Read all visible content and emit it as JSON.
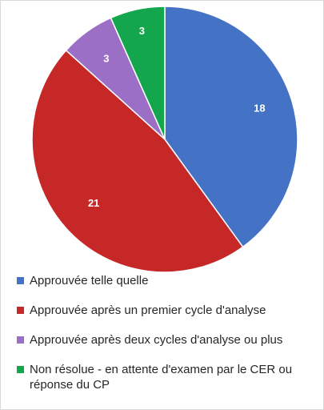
{
  "chart_data": {
    "type": "pie",
    "title": "",
    "categories": [
      "Approuvée telle quelle",
      "Approuvée après un premier cycle d'analyse",
      "Approuvée après deux cycles d'analyse ou plus",
      "Non résolue - en attente d'examen par le CER ou réponse du CP"
    ],
    "values": [
      18,
      21,
      3,
      3
    ],
    "colors": [
      "#4472C4",
      "#C62828",
      "#9C6FC7",
      "#13A64D"
    ],
    "data_labels": [
      "18",
      "21",
      "3",
      "3"
    ],
    "legend_position": "bottom"
  }
}
